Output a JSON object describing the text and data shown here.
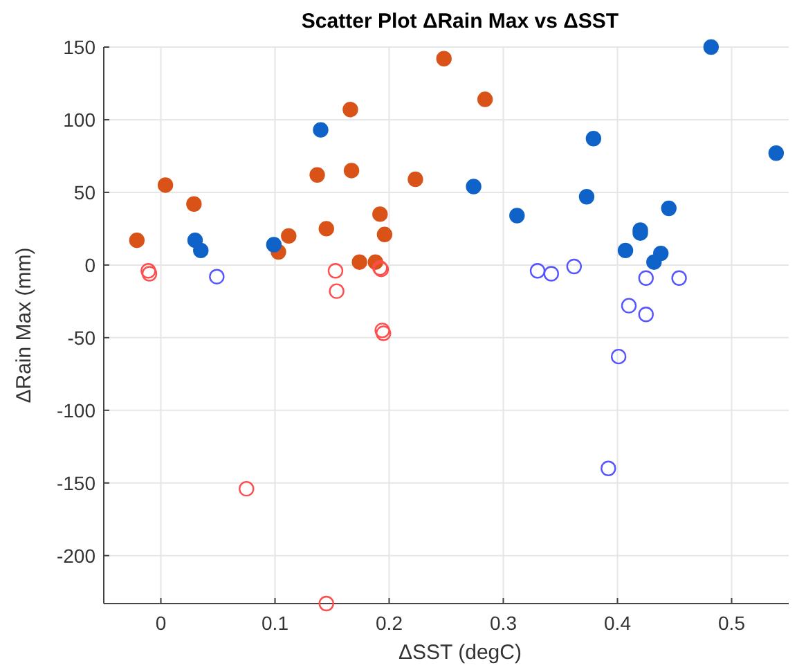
{
  "chart_data": {
    "type": "scatter",
    "title": "Scatter Plot ΔRain Max vs ΔSST",
    "xlabel": "ΔSST (degC)",
    "ylabel": "ΔRain Max (mm)",
    "xlim": [
      -0.05,
      0.55
    ],
    "ylim": [
      -233,
      150
    ],
    "xticks": [
      0,
      0.1,
      0.2,
      0.3,
      0.4,
      0.5
    ],
    "yticks": [
      -200,
      -150,
      -100,
      -50,
      0,
      50,
      100,
      150
    ],
    "grid": true,
    "marker": "circle",
    "series": [
      {
        "color": "#d95319",
        "x": [
          -0.021,
          0.004,
          0.029,
          0.103,
          0.112,
          0.137,
          0.145,
          0.166,
          0.167,
          0.174,
          0.188,
          0.192,
          0.196,
          0.223,
          0.248,
          0.284
        ],
        "values": [
          17,
          55,
          42,
          9,
          20,
          62,
          25,
          107,
          65,
          2,
          2,
          35,
          21,
          59,
          142,
          114
        ]
      },
      {
        "color": "#ff4d4d",
        "marker": "circle-open",
        "x": [
          -0.011,
          -0.01,
          0.153,
          0.154,
          0.192,
          0.193,
          0.194,
          0.195,
          0.075,
          0.145
        ],
        "values": [
          -4,
          -6,
          -4,
          -18,
          -2,
          -3,
          -45,
          -47,
          -154,
          -233
        ]
      },
      {
        "color": "#0f62c8",
        "x": [
          0.14,
          0.03,
          0.035,
          0.099,
          0.482,
          0.274,
          0.312,
          0.379,
          0.373,
          0.445,
          0.42,
          0.42,
          0.407,
          0.438,
          0.432,
          0.539
        ],
        "values": [
          93,
          17,
          10,
          14,
          150,
          54,
          34,
          87,
          47,
          39,
          24,
          22,
          10,
          8,
          2,
          77
        ]
      },
      {
        "color": "#5555ff",
        "marker": "circle-open",
        "x": [
          0.049,
          0.33,
          0.342,
          0.362,
          0.425,
          0.454,
          0.41,
          0.425,
          0.401,
          0.392
        ],
        "values": [
          -8,
          -4,
          -6,
          -1,
          -9,
          -9,
          -28,
          -34,
          -63,
          -140
        ]
      }
    ]
  }
}
